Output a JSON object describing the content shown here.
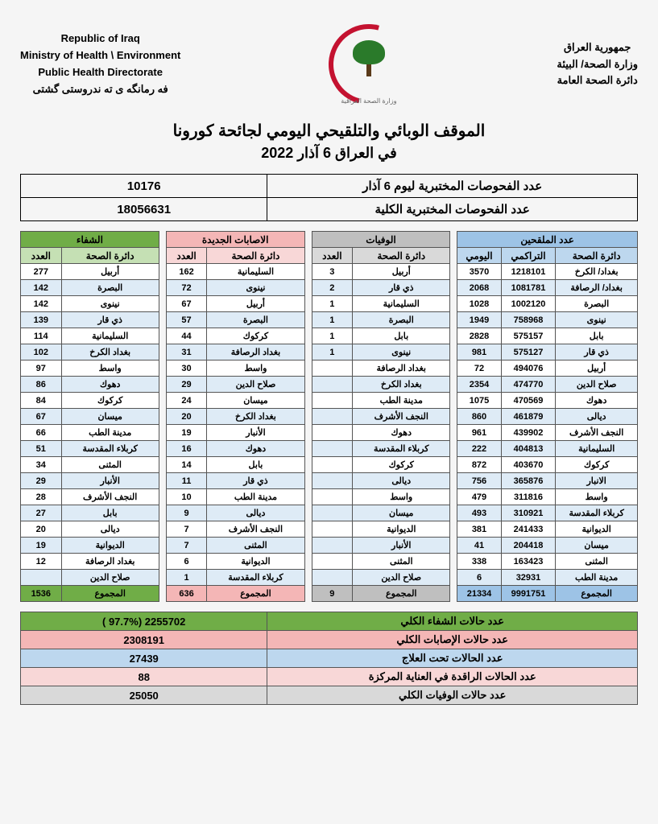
{
  "header": {
    "left": {
      "l1": "Republic of Iraq",
      "l2": "Ministry of Health \\ Environment",
      "l3": "Public Health Directorate",
      "l4": "فه رمانگه ی ته ندروستی گشتی"
    },
    "right": {
      "l1": "جمهورية العراق",
      "l2": "وزارة الصحة/ البيئة",
      "l3": "دائرة الصحة العامة"
    },
    "logo_caption": "وزارة الصحة العراقية"
  },
  "title": {
    "main": "الموقف الوبائي والتلقيحي اليومي لجائحة كورونا",
    "sub": "في العراق  6  آذار  2022"
  },
  "summary": {
    "row1_label": "عدد الفحوصات المختبرية  ليوم  6   آذار",
    "row1_value": "10176",
    "row2_label": "عدد الفحوصات المختبرية الكلية",
    "row2_value": "18056631"
  },
  "sections": {
    "recovery": {
      "title": "الشفاء",
      "cols": [
        "دائرة الصحة",
        "العدد"
      ],
      "rows": [
        [
          "أربيل",
          "277"
        ],
        [
          "البصرة",
          "142"
        ],
        [
          "نينوى",
          "142"
        ],
        [
          "ذي قار",
          "139"
        ],
        [
          "السليمانية",
          "114"
        ],
        [
          "بغداد الكرخ",
          "102"
        ],
        [
          "واسط",
          "97"
        ],
        [
          "دهوك",
          "86"
        ],
        [
          "كركوك",
          "84"
        ],
        [
          "ميسان",
          "67"
        ],
        [
          "مدينة الطب",
          "66"
        ],
        [
          "كربلاء المقدسة",
          "51"
        ],
        [
          "المثنى",
          "34"
        ],
        [
          "الأنبار",
          "29"
        ],
        [
          "النجف الأشرف",
          "28"
        ],
        [
          "بابل",
          "27"
        ],
        [
          "ديالى",
          "20"
        ],
        [
          "الديوانية",
          "19"
        ],
        [
          "بغداد الرصافة",
          "12"
        ],
        [
          "صلاح الدين",
          ""
        ]
      ],
      "total_label": "المجموع",
      "total_value": "1536"
    },
    "cases": {
      "title": "الاصابات الجديدة",
      "cols": [
        "دائرة الصحة",
        "العدد"
      ],
      "rows": [
        [
          "السليمانية",
          "162"
        ],
        [
          "نينوى",
          "72"
        ],
        [
          "أربيل",
          "67"
        ],
        [
          "البصرة",
          "57"
        ],
        [
          "كركوك",
          "44"
        ],
        [
          "بغداد الرصافة",
          "31"
        ],
        [
          "واسط",
          "30"
        ],
        [
          "صلاح الدين",
          "29"
        ],
        [
          "ميسان",
          "24"
        ],
        [
          "بغداد الكرخ",
          "20"
        ],
        [
          "الأنبار",
          "19"
        ],
        [
          "دهوك",
          "16"
        ],
        [
          "بابل",
          "14"
        ],
        [
          "ذي قار",
          "11"
        ],
        [
          "مدينة الطب",
          "10"
        ],
        [
          "ديالى",
          "9"
        ],
        [
          "النجف الأشرف",
          "7"
        ],
        [
          "المثنى",
          "7"
        ],
        [
          "الديوانية",
          "6"
        ],
        [
          "كربلاء المقدسة",
          "1"
        ]
      ],
      "total_label": "المجموع",
      "total_value": "636"
    },
    "deaths": {
      "title": "الوفيات",
      "cols": [
        "دائرة الصحة",
        "العدد"
      ],
      "rows": [
        [
          "أربيل",
          "3"
        ],
        [
          "ذي قار",
          "2"
        ],
        [
          "السليمانية",
          "1"
        ],
        [
          "البصرة",
          "1"
        ],
        [
          "بابل",
          "1"
        ],
        [
          "نينوى",
          "1"
        ],
        [
          "بغداد الرصافة",
          ""
        ],
        [
          "بغداد الكرخ",
          ""
        ],
        [
          "مدينة الطب",
          ""
        ],
        [
          "النجف الأشرف",
          ""
        ],
        [
          "دهوك",
          ""
        ],
        [
          "كربلاء المقدسة",
          ""
        ],
        [
          "كركوك",
          ""
        ],
        [
          "ديالى",
          ""
        ],
        [
          "واسط",
          ""
        ],
        [
          "ميسان",
          ""
        ],
        [
          "الديوانية",
          ""
        ],
        [
          "الأنبار",
          ""
        ],
        [
          "المثنى",
          ""
        ],
        [
          "صلاح الدين",
          ""
        ]
      ],
      "total_label": "المجموع",
      "total_value": "9"
    },
    "vaccinated": {
      "title": "عدد الملقحين",
      "cols": [
        "دائرة الصحة",
        "التراكمي",
        "اليومي"
      ],
      "rows": [
        [
          "بغداد/ الكرخ",
          "1218101",
          "3570"
        ],
        [
          "بغداد/ الرصافة",
          "1081781",
          "2068"
        ],
        [
          "البصرة",
          "1002120",
          "1028"
        ],
        [
          "نينوى",
          "758968",
          "1949"
        ],
        [
          "بابل",
          "575157",
          "2828"
        ],
        [
          "ذي قار",
          "575127",
          "981"
        ],
        [
          "أربيل",
          "494076",
          "72"
        ],
        [
          "صلاح الدين",
          "474770",
          "2354"
        ],
        [
          "دهوك",
          "470569",
          "1075"
        ],
        [
          "ديالى",
          "461879",
          "860"
        ],
        [
          "النجف الأشرف",
          "439902",
          "961"
        ],
        [
          "السليمانية",
          "404813",
          "222"
        ],
        [
          "كركوك",
          "403670",
          "872"
        ],
        [
          "الانبار",
          "365876",
          "756"
        ],
        [
          "واسط",
          "311816",
          "479"
        ],
        [
          "كربلاء المقدسة",
          "310921",
          "493"
        ],
        [
          "الديوانية",
          "241433",
          "381"
        ],
        [
          "ميسان",
          "204418",
          "41"
        ],
        [
          "المثنى",
          "163423",
          "338"
        ],
        [
          "مدينة الطب",
          "32931",
          "6"
        ]
      ],
      "total_label": "المجموع",
      "total_cumulative": "9991751",
      "total_daily": "21334"
    }
  },
  "footer": {
    "rows": [
      {
        "label": "عدد حالات الشفاء الكلي",
        "value": "2255702  (97.7% )",
        "bg": "ft-green"
      },
      {
        "label": "عدد حالات الإصابات الكلي",
        "value": "2308191",
        "bg": "ft-pink"
      },
      {
        "label": "عدد الحالات تحت العلاج",
        "value": "27439",
        "bg": "ft-blue"
      },
      {
        "label": "عدد الحالات الراقدة في العناية المركزة",
        "value": "88",
        "bg": "ft-lightpink"
      },
      {
        "label": "عدد حالات الوفيات الكلي",
        "value": "25050",
        "bg": "ft-gray"
      }
    ]
  },
  "colors": {
    "green": "#70ad47",
    "pink": "#f4b6b6",
    "gray": "#bfbfbf",
    "blue": "#9dc3e6",
    "sub_green": "#c5e0b4",
    "sub_pink": "#f8d7d7",
    "sub_gray": "#d9d9d9",
    "sub_blue": "#bdd7ee",
    "row_alt": "#deebf6"
  }
}
